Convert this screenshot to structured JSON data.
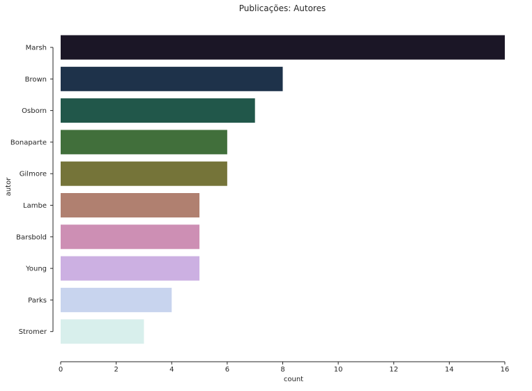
{
  "chart_data": {
    "type": "bar",
    "orientation": "horizontal",
    "title": "Publicações: Autores",
    "xlabel": "count",
    "ylabel": "autor",
    "xlim": [
      0,
      16
    ],
    "xticks": [
      0,
      2,
      4,
      6,
      8,
      10,
      12,
      14,
      16
    ],
    "grid": false,
    "categories": [
      "Marsh",
      "Brown",
      "Osborn",
      "Bonaparte",
      "Gilmore",
      "Lambe",
      "Barsbold",
      "Young",
      "Parks",
      "Stromer"
    ],
    "values": [
      16,
      8,
      7,
      6,
      6,
      5,
      5,
      5,
      4,
      3
    ],
    "colors": [
      "#1b1626",
      "#1e324a",
      "#21574a",
      "#416f3b",
      "#757439",
      "#b08070",
      "#cd8fb4",
      "#ccb0e2",
      "#c8d4ee",
      "#d8efec"
    ]
  }
}
